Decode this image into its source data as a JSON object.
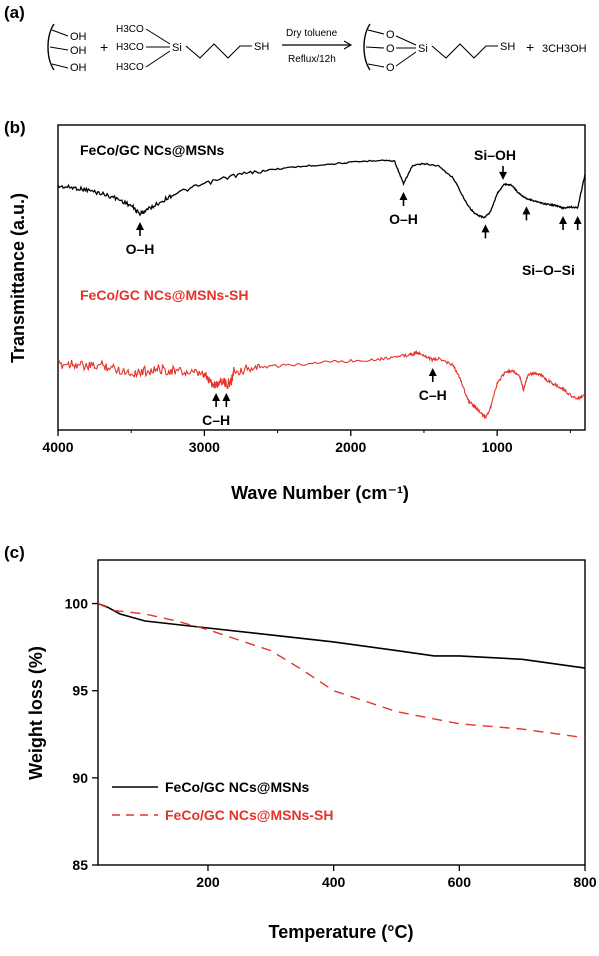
{
  "panel_labels": {
    "a": "(a)",
    "b": "(b)",
    "c": "(c)"
  },
  "reaction": {
    "reactant_oh": [
      "OH",
      "OH",
      "OH"
    ],
    "plus1": "+",
    "methoxy": [
      "H3CO",
      "H3CO",
      "H3CO"
    ],
    "si": "Si",
    "sh": "SH",
    "condition_top": "Dry toluene",
    "condition_bottom": "Reflux/12h",
    "product_o": [
      "O",
      "O",
      "O"
    ],
    "product_si": "Si",
    "product_sh": "SH",
    "plus2": "+",
    "byproduct": "3CH3OH"
  },
  "colors": {
    "black_series": "#000000",
    "red_series": "#e5332a"
  },
  "chart_data": [
    {
      "type": "line",
      "panel": "b",
      "xlabel": "Wave Number (cm⁻¹)",
      "ylabel": "Transmittance (a.u.)",
      "xlim": [
        4000,
        400
      ],
      "x_reversed": true,
      "xticks": [
        4000,
        3000,
        2000,
        1000
      ],
      "yticks": [],
      "grid": false,
      "series": [
        {
          "name": "FeCo/GC NCs@MSNs",
          "color": "#000000",
          "x": [
            4000,
            3900,
            3800,
            3700,
            3600,
            3500,
            3440,
            3400,
            3300,
            3200,
            3000,
            2800,
            2600,
            2400,
            2200,
            2000,
            1800,
            1700,
            1640,
            1580,
            1500,
            1400,
            1300,
            1200,
            1150,
            1090,
            1050,
            1000,
            950,
            900,
            850,
            800,
            750,
            700,
            650,
            600,
            550,
            500,
            450,
            400
          ],
          "y": [
            0.78,
            0.77,
            0.75,
            0.72,
            0.68,
            0.62,
            0.55,
            0.58,
            0.65,
            0.72,
            0.8,
            0.87,
            0.91,
            0.94,
            0.96,
            0.98,
            1.0,
            0.99,
            0.8,
            0.95,
            0.97,
            0.95,
            0.85,
            0.62,
            0.55,
            0.52,
            0.56,
            0.72,
            0.8,
            0.79,
            0.72,
            0.68,
            0.66,
            0.64,
            0.63,
            0.62,
            0.6,
            0.61,
            0.6,
            0.88
          ]
        },
        {
          "name": "FeCo/GC NCs@MSNs-SH",
          "color": "#e5332a",
          "x": [
            4000,
            3900,
            3800,
            3700,
            3600,
            3500,
            3400,
            3300,
            3200,
            3100,
            3000,
            2950,
            2920,
            2880,
            2850,
            2820,
            2800,
            2700,
            2600,
            2400,
            2200,
            2000,
            1800,
            1700,
            1600,
            1550,
            1500,
            1440,
            1400,
            1300,
            1250,
            1200,
            1150,
            1100,
            1080,
            1050,
            1000,
            950,
            900,
            850,
            820,
            790,
            750,
            700,
            650,
            600,
            550,
            500,
            450,
            400
          ],
          "y": [
            0.3,
            0.32,
            0.28,
            0.3,
            0.26,
            0.22,
            0.24,
            0.26,
            0.24,
            0.22,
            0.2,
            0.12,
            0.1,
            0.15,
            0.1,
            0.12,
            0.24,
            0.26,
            0.28,
            0.3,
            0.33,
            0.34,
            0.36,
            0.38,
            0.4,
            0.42,
            0.4,
            0.35,
            0.36,
            0.3,
            0.15,
            -0.05,
            -0.12,
            -0.2,
            -0.22,
            -0.15,
            0.12,
            0.22,
            0.24,
            0.2,
            0.05,
            0.2,
            0.22,
            0.2,
            0.14,
            0.1,
            0.06,
            0.0,
            -0.04,
            0.0
          ]
        }
      ],
      "annotations": [
        {
          "text": "O–H",
          "series": 0,
          "x": 3440
        },
        {
          "text": "O–H",
          "series": 0,
          "x": 1640
        },
        {
          "text": "Si–OH",
          "series": 0,
          "x": 960
        },
        {
          "text": "Si–O–Si",
          "series": 0,
          "x": 1080,
          "extra_x": [
            800,
            550,
            450
          ]
        },
        {
          "text": "C–H",
          "series": 1,
          "x": 2920,
          "extra_x": [
            2850
          ]
        },
        {
          "text": "C–H",
          "series": 1,
          "x": 1440
        }
      ]
    },
    {
      "type": "line",
      "panel": "c",
      "xlabel": "Temperature (°C)",
      "ylabel": "Weight loss (%)",
      "xlim": [
        25,
        800
      ],
      "ylim": [
        85,
        102.5
      ],
      "xticks": [
        200,
        400,
        600,
        800
      ],
      "yticks": [
        85,
        90,
        95,
        100
      ],
      "grid": false,
      "legend": "bottom-left",
      "series": [
        {
          "name": "FeCo/GC NCs@MSNs",
          "color": "#000000",
          "dash": "solid",
          "x": [
            25,
            40,
            60,
            100,
            150,
            200,
            300,
            400,
            500,
            560,
            600,
            700,
            800
          ],
          "y": [
            100,
            99.8,
            99.4,
            99.0,
            98.8,
            98.6,
            98.2,
            97.8,
            97.3,
            97.0,
            97.0,
            96.8,
            96.3
          ]
        },
        {
          "name": "FeCo/GC NCs@MSNs-SH",
          "color": "#e5332a",
          "dash": "dashed",
          "x": [
            25,
            50,
            100,
            150,
            200,
            250,
            300,
            350,
            400,
            500,
            600,
            700,
            800
          ],
          "y": [
            100,
            99.6,
            99.4,
            99.0,
            98.5,
            97.9,
            97.3,
            96.2,
            95.0,
            93.8,
            93.1,
            92.8,
            92.3
          ]
        }
      ]
    }
  ]
}
